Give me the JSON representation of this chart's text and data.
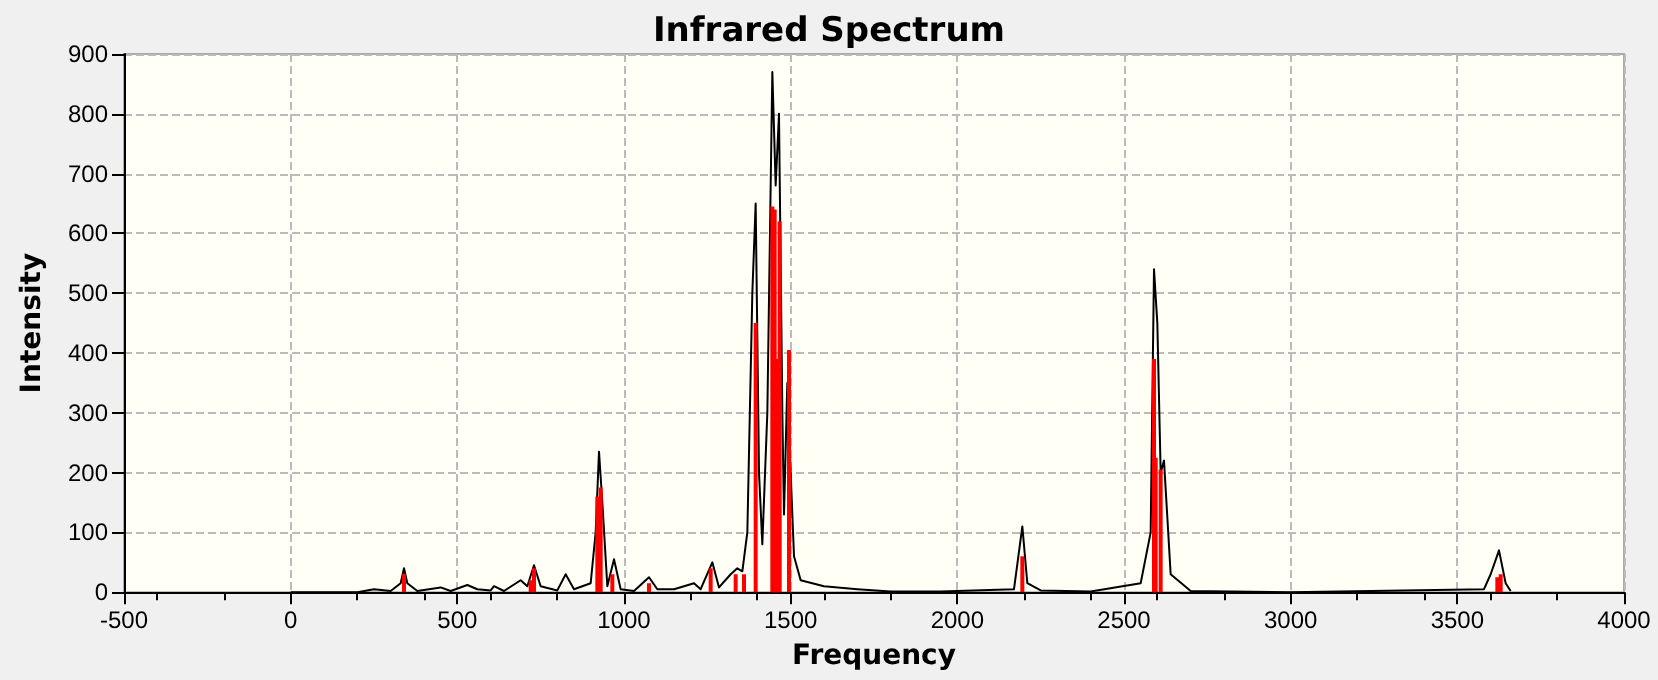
{
  "chart_data": {
    "type": "line",
    "title": "Infrared Spectrum",
    "xlabel": "Frequency",
    "ylabel": "Intensity",
    "xlim": [
      -500,
      4000
    ],
    "xticks": [
      -500,
      0,
      500,
      1000,
      1500,
      2000,
      2500,
      3000,
      3500,
      4000
    ],
    "ylim": [
      0,
      900
    ],
    "yticks": [
      0,
      100,
      200,
      300,
      400,
      500,
      600,
      700,
      800,
      900
    ],
    "grid": true,
    "series": [
      {
        "color": "#000000",
        "marker": "none",
        "x": [
          0,
          200,
          250,
          300,
          330,
          340,
          350,
          380,
          450,
          480,
          530,
          560,
          600,
          610,
          640,
          690,
          710,
          730,
          750,
          800,
          825,
          850,
          900,
          915,
          925,
          935,
          950,
          970,
          990,
          1030,
          1075,
          1100,
          1150,
          1210,
          1230,
          1265,
          1285,
          1320,
          1340,
          1355,
          1370,
          1385,
          1395,
          1405,
          1415,
          1430,
          1445,
          1455,
          1465,
          1475,
          1480,
          1490,
          1500,
          1510,
          1530,
          1600,
          1700,
          1800,
          1950,
          2170,
          2195,
          2210,
          2250,
          2400,
          2550,
          2580,
          2590,
          2600,
          2610,
          2620,
          2640,
          2700,
          3000,
          3580,
          3600,
          3625,
          3645,
          3660
        ],
        "values": [
          0,
          0,
          5,
          2,
          15,
          40,
          15,
          2,
          8,
          2,
          12,
          5,
          3,
          10,
          2,
          20,
          10,
          45,
          10,
          3,
          30,
          5,
          15,
          100,
          235,
          150,
          10,
          55,
          5,
          2,
          25,
          5,
          5,
          15,
          5,
          50,
          8,
          30,
          40,
          35,
          100,
          500,
          650,
          200,
          80,
          300,
          870,
          680,
          800,
          300,
          130,
          350,
          200,
          60,
          20,
          10,
          5,
          1,
          1,
          5,
          110,
          15,
          3,
          1,
          15,
          100,
          540,
          450,
          200,
          220,
          30,
          2,
          0,
          5,
          30,
          70,
          15,
          2
        ]
      },
      {
        "type": "bar",
        "color": "#ff0000",
        "x": [
          340,
          720,
          730,
          920,
          930,
          965,
          1075,
          1260,
          1335,
          1360,
          1395,
          1445,
          1452,
          1460,
          1467,
          1495,
          2195,
          2590,
          2595,
          2610,
          3620,
          3630
        ],
        "values": [
          30,
          20,
          40,
          160,
          175,
          30,
          15,
          40,
          30,
          30,
          450,
          645,
          640,
          390,
          620,
          405,
          60,
          390,
          225,
          205,
          25,
          30
        ]
      }
    ]
  }
}
